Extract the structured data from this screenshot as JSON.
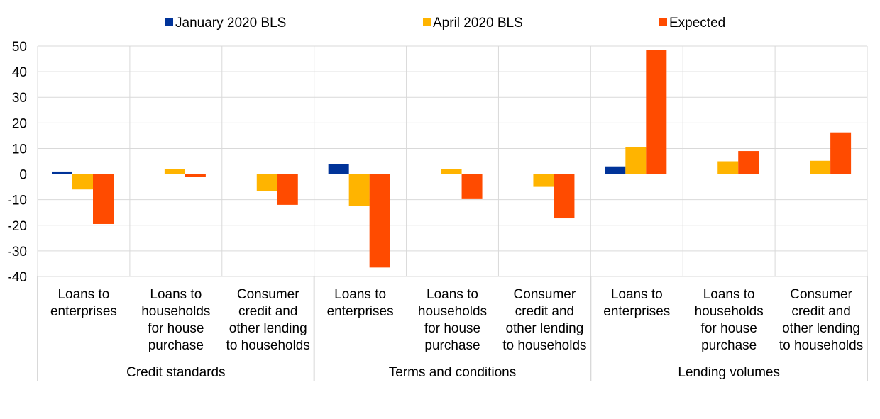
{
  "chart_data": {
    "type": "bar",
    "legend_position": "top",
    "grid": true,
    "ylim": [
      -40,
      50
    ],
    "yticks": [
      -40,
      -30,
      -20,
      -10,
      0,
      10,
      20,
      30,
      40,
      50
    ],
    "ytick_labels": [
      "-40",
      "-30",
      "-20",
      "-10",
      "0",
      "10",
      "20",
      "30",
      "40",
      "50"
    ],
    "groups": [
      {
        "label": "Credit standards",
        "categories": [
          0,
          1,
          2
        ]
      },
      {
        "label": "Terms and conditions",
        "categories": [
          3,
          4,
          5
        ]
      },
      {
        "label": "Lending volumes",
        "categories": [
          6,
          7,
          8
        ]
      }
    ],
    "categories": [
      [
        "Loans to",
        "enterprises"
      ],
      [
        "Loans to",
        "households",
        "for house",
        "purchase"
      ],
      [
        "Consumer",
        "credit and",
        "other lending",
        "to households"
      ],
      [
        "Loans to",
        "enterprises"
      ],
      [
        "Loans to",
        "households",
        "for house",
        "purchase"
      ],
      [
        "Consumer",
        "credit and",
        "other lending",
        "to households"
      ],
      [
        "Loans to",
        "enterprises"
      ],
      [
        "Loans to",
        "households",
        "for house",
        "purchase"
      ],
      [
        "Consumer",
        "credit and",
        "other lending",
        "to households"
      ]
    ],
    "series": [
      {
        "name": "January 2020 BLS",
        "color": "#003399",
        "values": [
          1,
          0,
          0,
          4,
          0,
          0,
          3,
          0,
          0
        ]
      },
      {
        "name": "April 2020 BLS",
        "color": "#FFB400",
        "values": [
          -6,
          2,
          -6.5,
          -12.5,
          2,
          -5,
          10.5,
          5,
          5.2
        ]
      },
      {
        "name": "Expected",
        "color": "#FF4B00",
        "values": [
          -19.5,
          -1,
          -12,
          -36.5,
          -9.5,
          -17.3,
          48.5,
          9,
          16.3
        ]
      }
    ]
  }
}
